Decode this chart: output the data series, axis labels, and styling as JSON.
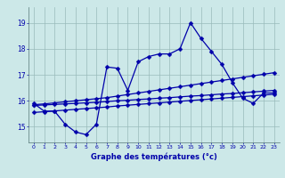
{
  "xlabel": "Graphe des températures (°c)",
  "bg_color": "#cce8e8",
  "line_color": "#0000aa",
  "grid_color": "#99bbbb",
  "x_ticks": [
    0,
    1,
    2,
    3,
    4,
    5,
    6,
    7,
    8,
    9,
    10,
    11,
    12,
    13,
    14,
    15,
    16,
    17,
    18,
    19,
    20,
    21,
    22,
    23
  ],
  "y_ticks": [
    15,
    16,
    17,
    18,
    19
  ],
  "ylim": [
    14.4,
    19.6
  ],
  "xlim": [
    -0.5,
    23.5
  ],
  "series": [
    [
      15.9,
      15.6,
      15.6,
      15.1,
      14.8,
      14.7,
      15.1,
      17.3,
      17.25,
      16.4,
      17.5,
      17.7,
      17.8,
      17.8,
      18.0,
      19.0,
      18.4,
      17.9,
      17.4,
      16.7,
      16.1,
      15.9,
      16.3,
      16.3
    ],
    [
      15.85,
      15.88,
      15.92,
      15.96,
      16.0,
      16.04,
      16.08,
      16.12,
      16.18,
      16.24,
      16.3,
      16.36,
      16.42,
      16.48,
      16.54,
      16.6,
      16.66,
      16.72,
      16.78,
      16.84,
      16.9,
      16.96,
      17.02,
      17.08
    ],
    [
      15.82,
      15.84,
      15.86,
      15.88,
      15.9,
      15.92,
      15.94,
      15.97,
      16.0,
      16.02,
      16.05,
      16.07,
      16.1,
      16.12,
      16.15,
      16.18,
      16.2,
      16.23,
      16.26,
      16.28,
      16.31,
      16.34,
      16.37,
      16.4
    ],
    [
      15.55,
      15.58,
      15.61,
      15.64,
      15.67,
      15.7,
      15.73,
      15.76,
      15.8,
      15.83,
      15.86,
      15.89,
      15.92,
      15.95,
      15.98,
      16.01,
      16.04,
      16.07,
      16.1,
      16.13,
      16.16,
      16.19,
      16.22,
      16.25
    ]
  ],
  "markersize": 2.5,
  "linewidth": 0.9
}
